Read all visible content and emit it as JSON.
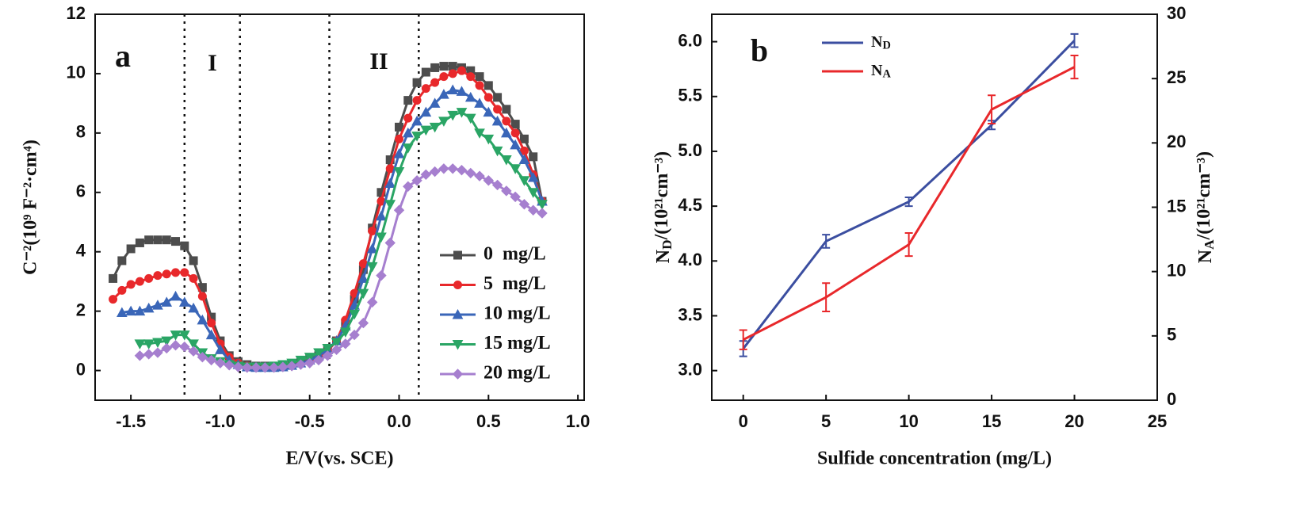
{
  "chart_data": [
    {
      "type": "line",
      "panel_label": "a",
      "annotations": [
        "I",
        "II"
      ],
      "xlabel": "E/V(vs. SCE)",
      "ylabel": "C⁻²(10⁹ F⁻²·cm⁴)",
      "xlim": [
        -1.7,
        1.035
      ],
      "ylim": [
        -1,
        12
      ],
      "xticks": [
        -1.5,
        {
          "value": -1,
          "label": "-1.0"
        },
        -0.5,
        {
          "value": 0,
          "label": "0.0"
        },
        0.5,
        {
          "value": 1,
          "label": "1.0"
        }
      ],
      "yticks": [
        0,
        2,
        4,
        6,
        8,
        10,
        12
      ],
      "vlines": [
        -1.2,
        -0.89,
        -0.39,
        0.11
      ],
      "legend": "lower right",
      "x": [
        -1.6,
        -1.55,
        -1.5,
        -1.45,
        -1.4,
        -1.35,
        -1.3,
        -1.25,
        -1.2,
        -1.15,
        -1.1,
        -1.05,
        -1.0,
        -0.95,
        -0.9,
        -0.85,
        -0.8,
        -0.75,
        -0.7,
        -0.65,
        -0.6,
        -0.55,
        -0.5,
        -0.45,
        -0.4,
        -0.35,
        -0.3,
        -0.25,
        -0.2,
        -0.15,
        -0.1,
        -0.05,
        0.0,
        0.05,
        0.1,
        0.15,
        0.2,
        0.25,
        0.3,
        0.35,
        0.4,
        0.45,
        0.5,
        0.55,
        0.6,
        0.65,
        0.7,
        0.75,
        0.8
      ],
      "series": [
        {
          "name": "0  mg/L",
          "color": "#4d4d4d",
          "marker": "square",
          "values": [
            3.1,
            3.7,
            4.1,
            4.3,
            4.4,
            4.4,
            4.4,
            4.35,
            4.2,
            3.7,
            2.8,
            1.8,
            1.0,
            0.5,
            0.3,
            0.2,
            0.15,
            0.15,
            0.15,
            0.18,
            0.22,
            0.3,
            0.4,
            0.5,
            0.7,
            1.0,
            1.6,
            2.4,
            3.4,
            4.8,
            6.0,
            7.1,
            8.2,
            9.1,
            9.7,
            10.05,
            10.2,
            10.25,
            10.25,
            10.2,
            10.1,
            9.9,
            9.6,
            9.2,
            8.8,
            8.3,
            7.8,
            7.2,
            5.7
          ]
        },
        {
          "name": "5  mg/L",
          "color": "#e8282b",
          "marker": "circle",
          "values": [
            2.4,
            2.7,
            2.9,
            3.0,
            3.1,
            3.2,
            3.25,
            3.3,
            3.3,
            3.1,
            2.5,
            1.6,
            0.9,
            0.45,
            0.25,
            0.15,
            0.12,
            0.12,
            0.12,
            0.15,
            0.2,
            0.25,
            0.35,
            0.45,
            0.65,
            1.0,
            1.7,
            2.6,
            3.6,
            4.7,
            5.7,
            6.8,
            7.8,
            8.5,
            9.1,
            9.5,
            9.7,
            9.9,
            10.0,
            10.1,
            9.9,
            9.6,
            9.2,
            8.8,
            8.4,
            8.0,
            7.4,
            6.6,
            5.7
          ]
        },
        {
          "name": "10 mg/L",
          "color": "#3a66b8",
          "marker": "triangle-up",
          "values": [
            null,
            1.95,
            2.0,
            2.0,
            2.1,
            2.2,
            2.3,
            2.5,
            2.3,
            2.1,
            1.7,
            1.2,
            0.7,
            0.35,
            0.2,
            0.12,
            0.1,
            0.1,
            0.1,
            0.12,
            0.17,
            0.25,
            0.35,
            0.5,
            0.7,
            1.0,
            1.5,
            2.2,
            3.1,
            4.1,
            5.2,
            6.3,
            7.3,
            8.0,
            8.4,
            8.7,
            9.0,
            9.3,
            9.45,
            9.4,
            9.2,
            9.0,
            8.7,
            8.4,
            8.0,
            7.6,
            7.1,
            6.5,
            5.7
          ]
        },
        {
          "name": "15 mg/L",
          "color": "#2aa565",
          "marker": "triangle-down",
          "values": [
            null,
            null,
            null,
            0.9,
            0.9,
            0.95,
            1.0,
            1.2,
            1.2,
            0.9,
            0.6,
            0.4,
            0.3,
            0.2,
            0.15,
            0.12,
            0.12,
            0.12,
            0.15,
            0.2,
            0.25,
            0.35,
            0.45,
            0.6,
            0.75,
            0.95,
            1.3,
            1.9,
            2.6,
            3.5,
            4.5,
            5.6,
            6.7,
            7.5,
            7.9,
            8.1,
            8.2,
            8.4,
            8.6,
            8.7,
            8.5,
            8.0,
            7.8,
            7.4,
            7.1,
            6.8,
            6.4,
            6.0,
            5.6
          ]
        },
        {
          "name": "20 mg/L",
          "color": "#a67fcf",
          "marker": "diamond",
          "values": [
            null,
            null,
            null,
            0.5,
            0.55,
            0.6,
            0.75,
            0.85,
            0.8,
            0.65,
            0.45,
            0.35,
            0.25,
            0.18,
            0.12,
            0.1,
            0.1,
            0.1,
            0.1,
            0.12,
            0.15,
            0.2,
            0.25,
            0.35,
            0.5,
            0.7,
            0.9,
            1.2,
            1.6,
            2.3,
            3.2,
            4.3,
            5.4,
            6.2,
            6.4,
            6.6,
            6.7,
            6.8,
            6.8,
            6.75,
            6.65,
            6.55,
            6.4,
            6.25,
            6.05,
            5.85,
            5.6,
            5.4,
            5.3
          ]
        }
      ]
    },
    {
      "type": "line",
      "panel_label": "b",
      "xlabel": "Sulfide concentration (mg/L)",
      "ylabel": "ND/(10²¹cm⁻³)",
      "y2label": "NA/(10²¹cm⁻³)",
      "xlim": [
        -1.9,
        25
      ],
      "ylim": [
        2.73,
        6.25
      ],
      "y2lim": [
        0,
        30
      ],
      "xticks": [
        0,
        5,
        10,
        15,
        20,
        25
      ],
      "yticks": [
        {
          "value": 3,
          "label": "3.0"
        },
        3.5,
        {
          "value": 4,
          "label": "4.0"
        },
        4.5,
        {
          "value": 5,
          "label": "5.0"
        },
        5.5,
        {
          "value": 6,
          "label": "6.0"
        }
      ],
      "y2ticks": [
        0,
        5,
        10,
        15,
        20,
        25,
        30
      ],
      "legend": "upper left",
      "x": [
        0,
        5,
        10,
        15,
        20
      ],
      "series": [
        {
          "name": "ND",
          "color": "#3b4ea0",
          "values": [
            3.2,
            4.18,
            4.54,
            5.24,
            6.01
          ],
          "errors": [
            0.07,
            0.06,
            0.04,
            0.04,
            0.06
          ]
        },
        {
          "name": "NA",
          "color": "#e8282b",
          "axis": "y2",
          "values": [
            4.7,
            8.0,
            12.1,
            22.6,
            25.9
          ],
          "errors": [
            0.75,
            1.1,
            0.9,
            1.1,
            0.9
          ]
        }
      ]
    }
  ]
}
